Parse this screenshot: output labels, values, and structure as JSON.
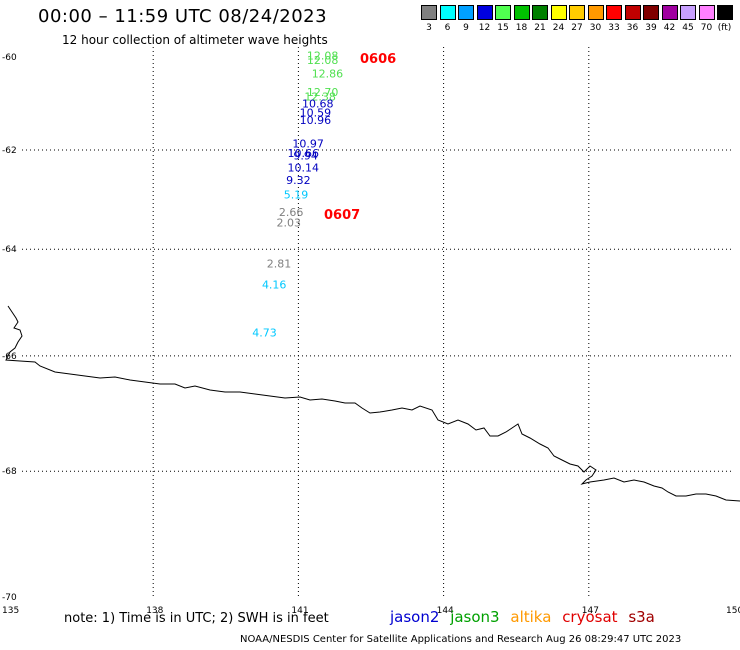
{
  "header": {
    "title": "00:00 – 11:59 UTC 08/24/2023",
    "subtitle": "12 hour collection of altimeter wave heights"
  },
  "legend": {
    "unit": "(ft)",
    "bins": [
      {
        "label": "3",
        "color": "#808080"
      },
      {
        "label": "6",
        "color": "#00ffff"
      },
      {
        "label": "9",
        "color": "#00a0ff"
      },
      {
        "label": "12",
        "color": "#0000e0"
      },
      {
        "label": "15",
        "color": "#50ff50"
      },
      {
        "label": "18",
        "color": "#00c000"
      },
      {
        "label": "21",
        "color": "#008000"
      },
      {
        "label": "24",
        "color": "#ffff00"
      },
      {
        "label": "27",
        "color": "#ffcc00"
      },
      {
        "label": "30",
        "color": "#ff9900"
      },
      {
        "label": "33",
        "color": "#ff0000"
      },
      {
        "label": "36",
        "color": "#c00000"
      },
      {
        "label": "39",
        "color": "#800000"
      },
      {
        "label": "42",
        "color": "#a000a0"
      },
      {
        "label": "45",
        "color": "#c8a0ff"
      },
      {
        "label": "70",
        "color": "#ff80ff"
      },
      {
        "label": "",
        "color": "#000000"
      }
    ]
  },
  "map": {
    "lon_range": [
      135,
      150
    ],
    "lat_range": [
      -70,
      -60
    ],
    "lon_ticks": [
      "135",
      "138",
      "141",
      "144",
      "147",
      "150"
    ],
    "lat_ticks": [
      "-60",
      "-62",
      "-64",
      "-66",
      "-68",
      "-70"
    ],
    "gridlines": true,
    "gridline_style": "dotted",
    "track_labels": [
      "0606",
      "0607"
    ],
    "readings": [
      {
        "value": "12.08",
        "color": "#50e050",
        "lon": 141.5,
        "lat": -60.05
      },
      {
        "value": "12.08",
        "color": "#50e050",
        "lon": 141.5,
        "lat": -60.15
      },
      {
        "value": "12.86",
        "color": "#50e050",
        "lon": 141.6,
        "lat": -60.45
      },
      {
        "value": "12.70",
        "color": "#50e050",
        "lon": 141.5,
        "lat": -60.85
      },
      {
        "value": "12.38",
        "color": "#50e050",
        "lon": 141.45,
        "lat": -60.95
      },
      {
        "value": "10.68",
        "color": "#0000c0",
        "lon": 141.4,
        "lat": -61.1
      },
      {
        "value": "10.59",
        "color": "#0000c0",
        "lon": 141.35,
        "lat": -61.3
      },
      {
        "value": "10.96",
        "color": "#0000c0",
        "lon": 141.35,
        "lat": -61.45
      },
      {
        "value": "10.97",
        "color": "#0000c0",
        "lon": 141.2,
        "lat": -61.95
      },
      {
        "value": "10.66",
        "color": "#0000c0",
        "lon": 141.1,
        "lat": -62.15
      },
      {
        "value": "9.94",
        "color": "#0000c0",
        "lon": 141.15,
        "lat": -62.2
      },
      {
        "value": "10.14",
        "color": "#0000c0",
        "lon": 141.1,
        "lat": -62.45
      },
      {
        "value": "9.32",
        "color": "#0000c0",
        "lon": 141.0,
        "lat": -62.7
      },
      {
        "value": "5.19",
        "color": "#00c8ff",
        "lon": 140.95,
        "lat": -63.0
      },
      {
        "value": "2.66",
        "color": "#808080",
        "lon": 140.85,
        "lat": -63.35
      },
      {
        "value": "2.03",
        "color": "#808080",
        "lon": 140.8,
        "lat": -63.55
      },
      {
        "value": "2.81",
        "color": "#808080",
        "lon": 140.6,
        "lat": -64.35
      },
      {
        "value": "4.16",
        "color": "#00c8ff",
        "lon": 140.5,
        "lat": -64.75
      },
      {
        "value": "4.73",
        "color": "#00c8ff",
        "lon": 140.3,
        "lat": -65.65
      }
    ]
  },
  "footer": {
    "note": "note: 1) Time is in UTC; 2) SWH is in feet",
    "credit": "NOAA/NESDIS Center for Satellite Applications and Research     Aug 26 08:29:47 UTC 2023",
    "satellites": [
      {
        "name": "jason2",
        "color": "#0000d0"
      },
      {
        "name": "jason3",
        "color": "#00a000"
      },
      {
        "name": "altika",
        "color": "#ff9900"
      },
      {
        "name": "cryosat",
        "color": "#e00000"
      },
      {
        "name": "s3a",
        "color": "#a00000"
      }
    ]
  }
}
